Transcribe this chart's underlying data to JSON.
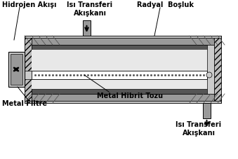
{
  "labels": {
    "hidrojen_akisi": "Hidrojen Akışı",
    "isi_transferi_top": "Isı Transferi\nAkışkanı",
    "radyal_bosluk": "Radyal  Boşluk",
    "metal_hibrit_tozu": "Metal Hibrit Tozu",
    "metal_filtre": "Metal Filtre",
    "isi_transferi_bot": "Isı Transferi\nAkışkanı"
  },
  "colors": {
    "dark_gray": "#555555",
    "medium_gray": "#999999",
    "light_gray": "#cccccc",
    "very_light": "#e8e8e8",
    "white": "#ffffff",
    "black": "#000000",
    "hatch_bg": "#bbbbbb"
  }
}
